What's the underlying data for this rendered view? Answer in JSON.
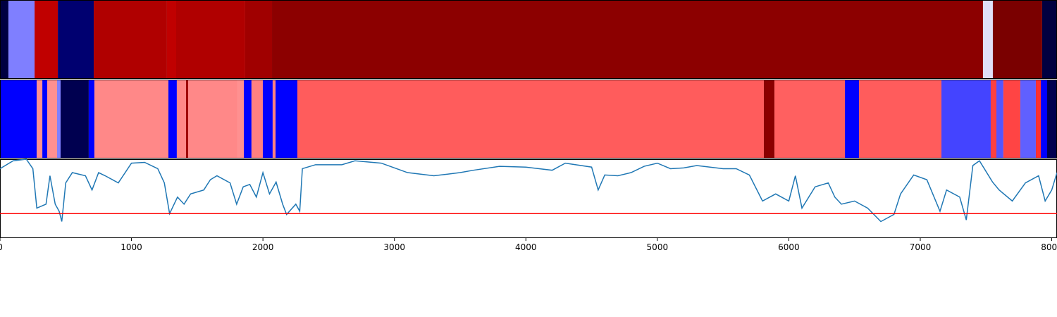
{
  "chart_data": {
    "type": "strips-line",
    "xlim": [
      0,
      8040
    ],
    "xticks": [
      0,
      1000,
      2000,
      3000,
      4000,
      5000,
      6000,
      7000,
      8000
    ],
    "strips": [
      {
        "edges": [
          0,
          64,
          263,
          440,
          713,
          1270,
          1340,
          1865,
          2069,
          7477,
          7552,
          7927,
          8040
        ],
        "colors": [
          "#000040",
          "#7f7fff",
          "#c00000",
          "#000070",
          "#b00000",
          "#c00000",
          "#b00000",
          "#a00000",
          "#8c0000",
          "#e0e0f8",
          "#7a0000",
          "#000040"
        ]
      },
      {
        "edges": [
          0,
          279,
          322,
          359,
          434,
          461,
          675,
          718,
          1281,
          1345,
          1415,
          1431,
          1806,
          1855,
          1913,
          1999,
          2074,
          2096,
          2262,
          5810,
          5891,
          6427,
          6534,
          7161,
          7536,
          7579,
          7632,
          7761,
          7879,
          7917,
          7965,
          8040
        ],
        "colors": [
          "#0000ff",
          "#ff9090",
          "#0000ff",
          "#ff9090",
          "#8080ff",
          "#000050",
          "#0000ff",
          "#ff8888",
          "#0000ff",
          "#ff8888",
          "#a00000",
          "#ff8888",
          "#ff9090",
          "#0000ff",
          "#ff8080",
          "#0000ff",
          "#ff8080",
          "#0000ff",
          "#ff5c5c",
          "#8b0000",
          "#ff6060",
          "#0000ff",
          "#ff5c5c",
          "#4444ff",
          "#ff4040",
          "#5555ff",
          "#ff4444",
          "#6060ff",
          "#ff3030",
          "#0000ff",
          "#000050"
        ]
      }
    ],
    "ylim": [
      0,
      1
    ],
    "x": [
      0,
      100,
      200,
      250,
      280,
      350,
      380,
      420,
      450,
      470,
      500,
      550,
      650,
      700,
      750,
      800,
      900,
      1000,
      1100,
      1200,
      1250,
      1290,
      1350,
      1400,
      1450,
      1550,
      1600,
      1650,
      1750,
      1800,
      1850,
      1900,
      1950,
      2000,
      2050,
      2100,
      2150,
      2180,
      2250,
      2280,
      2300,
      2400,
      2600,
      2700,
      2900,
      3000,
      3100,
      3300,
      3500,
      3600,
      3800,
      4000,
      4200,
      4300,
      4500,
      4550,
      4600,
      4700,
      4800,
      4900,
      5000,
      5100,
      5200,
      5300,
      5500,
      5600,
      5700,
      5800,
      5900,
      6000,
      6050,
      6100,
      6200,
      6300,
      6350,
      6400,
      6500,
      6600,
      6700,
      6800,
      6850,
      6950,
      7050,
      7150,
      7200,
      7300,
      7350,
      7400,
      7450,
      7550,
      7600,
      7700,
      7800,
      7900,
      7950,
      8000,
      8040
    ],
    "series": [
      {
        "color": "#1f77b4",
        "values": [
          0.88,
          0.98,
          1.0,
          0.88,
          0.38,
          0.43,
          0.79,
          0.43,
          0.34,
          0.21,
          0.7,
          0.83,
          0.79,
          0.61,
          0.83,
          0.79,
          0.7,
          0.95,
          0.96,
          0.88,
          0.7,
          0.31,
          0.52,
          0.43,
          0.56,
          0.61,
          0.74,
          0.79,
          0.7,
          0.43,
          0.65,
          0.68,
          0.52,
          0.83,
          0.56,
          0.71,
          0.43,
          0.3,
          0.43,
          0.34,
          0.88,
          0.93,
          0.93,
          0.98,
          0.95,
          0.89,
          0.83,
          0.79,
          0.83,
          0.86,
          0.91,
          0.9,
          0.86,
          0.95,
          0.9,
          0.61,
          0.8,
          0.79,
          0.83,
          0.91,
          0.95,
          0.88,
          0.89,
          0.92,
          0.88,
          0.88,
          0.8,
          0.47,
          0.56,
          0.47,
          0.79,
          0.38,
          0.65,
          0.7,
          0.52,
          0.43,
          0.47,
          0.38,
          0.21,
          0.3,
          0.56,
          0.8,
          0.74,
          0.34,
          0.61,
          0.52,
          0.23,
          0.92,
          0.98,
          0.71,
          0.61,
          0.47,
          0.7,
          0.79,
          0.47,
          0.61,
          0.83
        ]
      }
    ],
    "hline": {
      "value": 0.31,
      "color": "#ff0000"
    }
  }
}
